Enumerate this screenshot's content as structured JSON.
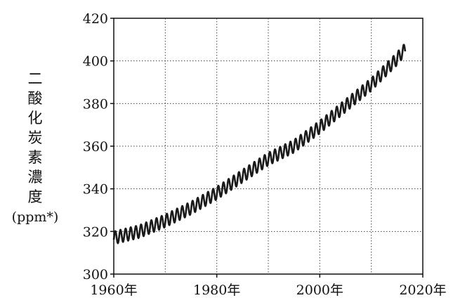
{
  "chart_data": {
    "type": "line",
    "ylabel": "二酸化炭素濃度",
    "yunit": "(ppm*)",
    "xlim": [
      1960,
      2020
    ],
    "ylim": [
      300,
      420
    ],
    "x_ticks": [
      "1960年",
      "1980年",
      "2000年",
      "2020年"
    ],
    "y_ticks": [
      "300",
      "320",
      "340",
      "360",
      "380",
      "400",
      "420"
    ],
    "x_grid_values": [
      1960,
      1970,
      1980,
      1990,
      2000,
      2010,
      2020
    ],
    "y_grid_values": [
      300,
      320,
      340,
      360,
      380,
      400,
      420
    ],
    "grid": true,
    "seasonal_amplitude": 3,
    "series": [
      {
        "x": [
          1958,
          1960,
          1965,
          1970,
          1975,
          1980,
          1985,
          1990,
          1995,
          2000,
          2005,
          2010,
          2015,
          2016,
          2017
        ],
        "values": [
          315,
          317,
          320,
          325,
          331,
          338,
          346,
          354,
          360,
          369,
          379,
          389,
          401,
          404,
          406
        ]
      }
    ],
    "line_color": "#1a1a1a"
  }
}
